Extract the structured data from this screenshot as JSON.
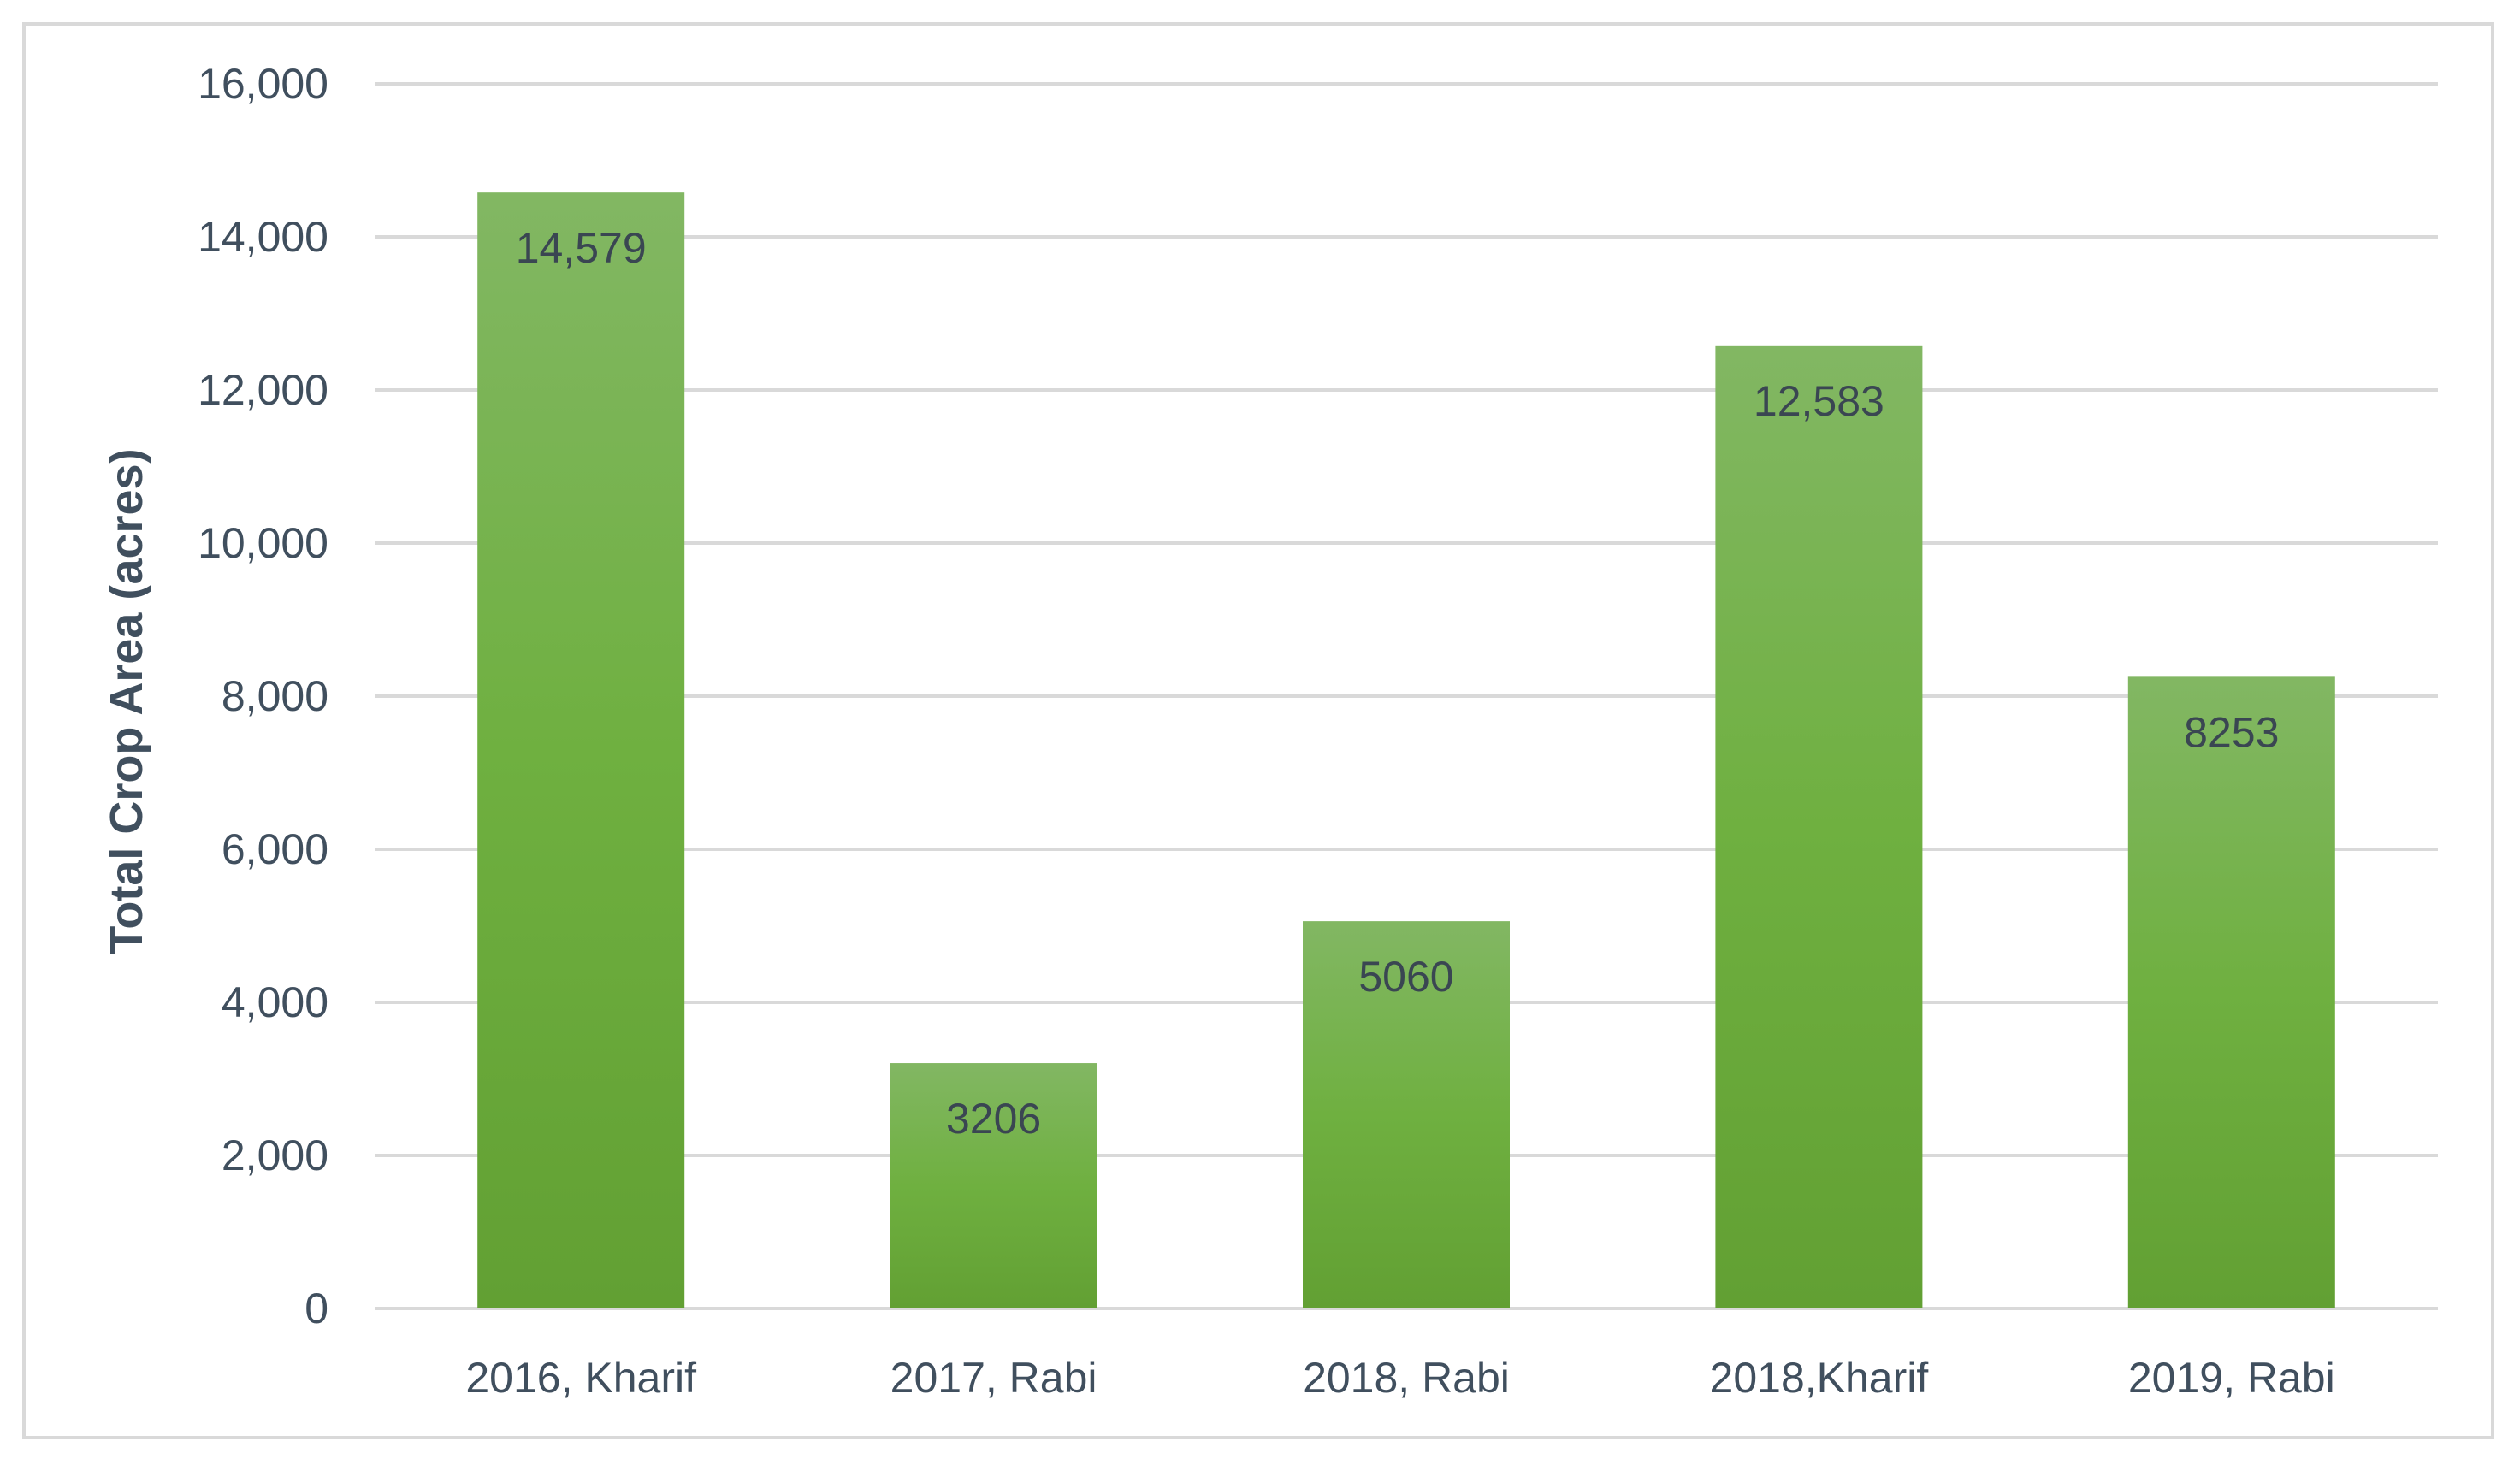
{
  "chart_data": {
    "type": "bar",
    "categories": [
      "2016, Kharif",
      "2017, Rabi",
      "2018, Rabi",
      "2018,Kharif",
      "2019, Rabi"
    ],
    "values": [
      14579,
      3206,
      5060,
      12583,
      8253
    ],
    "data_labels": [
      "14,579",
      "3206",
      "5060",
      "12,583",
      "8253"
    ],
    "ylabel": "Total Crop Area (acres)",
    "ylim": [
      0,
      16000
    ],
    "yticks": [
      0,
      2000,
      4000,
      6000,
      8000,
      10000,
      12000,
      14000,
      16000
    ],
    "ytick_labels": [
      "0",
      "2,000",
      "4,000",
      "6,000",
      "8,000",
      "10,000",
      "12,000",
      "14,000",
      "16,000"
    ],
    "grid": true,
    "legend": "none",
    "colors": {
      "bar_top": "#82b763",
      "bar_mid": "#6fb040",
      "bar_bottom": "#62a033",
      "grid": "#d9d9d9",
      "text": "#404f5e"
    }
  }
}
